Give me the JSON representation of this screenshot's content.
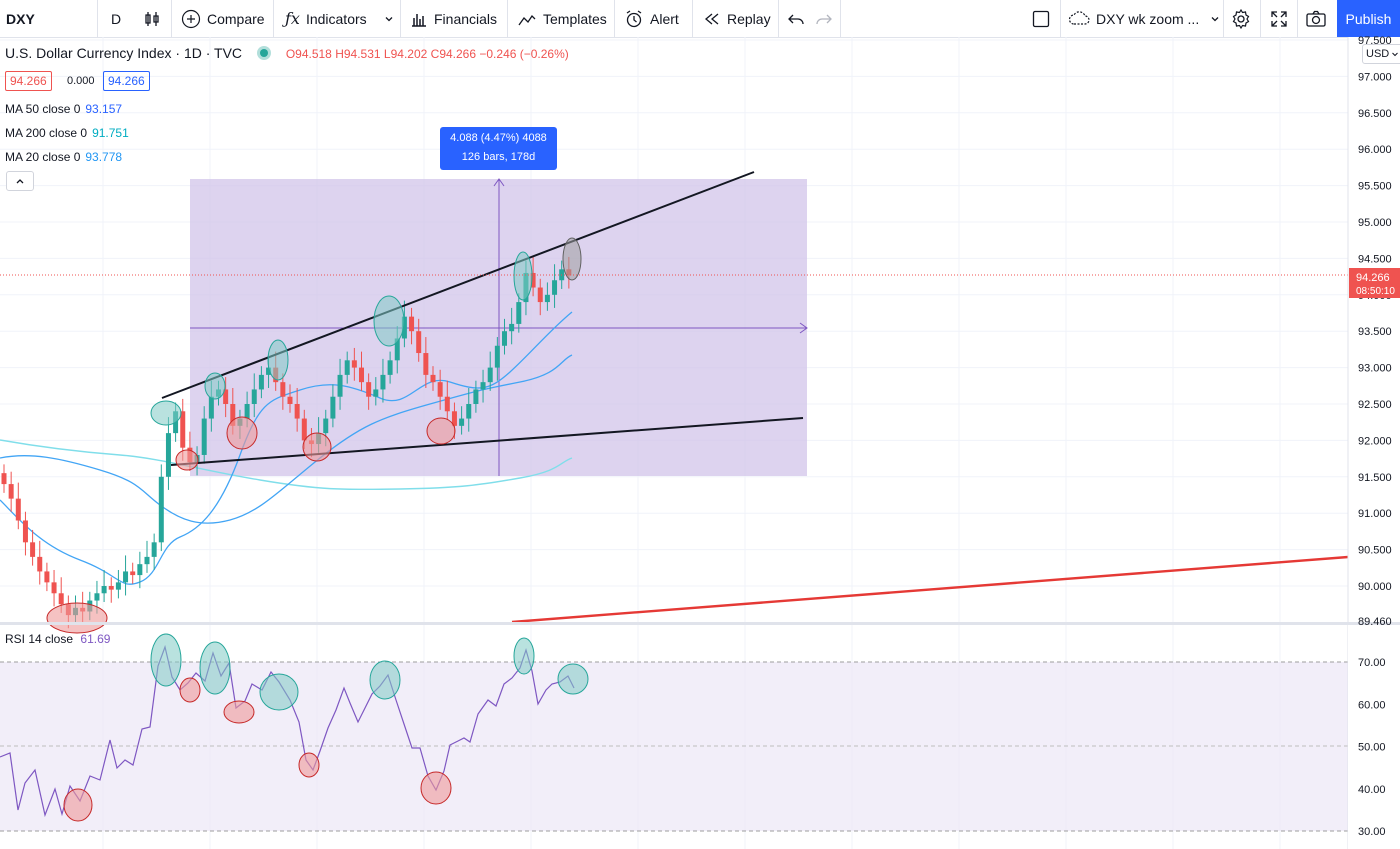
{
  "toolbar": {
    "symbol": "DXY",
    "interval": "D",
    "compare_label": "Compare",
    "indicators_label": "Indicators",
    "financials_label": "Financials",
    "templates_label": "Templates",
    "alert_label": "Alert",
    "replay_label": "Replay",
    "layout_name": "DXY wk zoom ...",
    "publish_label": "Publish"
  },
  "legend": {
    "title": "U.S. Dollar Currency Index · 1D · TVC",
    "open": "O94.518",
    "high": "H94.531",
    "low": "L94.202",
    "close": "C94.266",
    "change": "−0.246 (−0.26%)",
    "bid": "94.266",
    "spread": "0.000",
    "ask": "94.266"
  },
  "indicators": {
    "ma50_label": "MA 50 close 0",
    "ma50_value": "93.157",
    "ma200_label": "MA 200 close 0",
    "ma200_value": "91.751",
    "ma20_label": "MA 20 close 0",
    "ma20_value": "93.778",
    "rsi_label": "RSI 14 close",
    "rsi_value": "61.69"
  },
  "measure": {
    "line1": "4.088 (4.47%) 4088",
    "line2": "126 bars, 178d"
  },
  "price_axis": {
    "currency": "USD",
    "ticks": [
      "97.500",
      "97.000",
      "96.500",
      "96.000",
      "95.500",
      "95.000",
      "94.500",
      "94.000",
      "93.500",
      "93.000",
      "92.500",
      "92.000",
      "91.500",
      "91.000",
      "90.500",
      "90.000",
      "89.460"
    ],
    "last_price": "94.266",
    "countdown": "08:50:10"
  },
  "rsi_axis": {
    "ticks": [
      "70.00",
      "60.00",
      "50.00",
      "40.00",
      "30.00"
    ]
  },
  "colors": {
    "accent": "#2962ff",
    "up": "#26a69a",
    "down": "#ef5350",
    "ma": "#42a5f5",
    "rsi": "#7e57c2",
    "range_fill": "#d1c4e9"
  },
  "chart_data": {
    "type": "candlestick",
    "ylim": [
      89.46,
      97.6
    ],
    "ohlc_closes": [
      91.4,
      91.2,
      90.9,
      90.6,
      90.4,
      90.2,
      90.05,
      89.9,
      89.75,
      89.6,
      89.7,
      89.65,
      89.8,
      89.9,
      90.0,
      89.95,
      90.05,
      90.2,
      90.15,
      90.3,
      90.4,
      90.6,
      91.5,
      92.1,
      92.4,
      91.9,
      91.7,
      91.8,
      92.3,
      92.6,
      92.7,
      92.5,
      92.2,
      92.3,
      92.5,
      92.7,
      92.9,
      93.0,
      92.8,
      92.6,
      92.5,
      92.3,
      92.0,
      91.95,
      92.1,
      92.3,
      92.6,
      92.9,
      93.1,
      93.0,
      92.8,
      92.6,
      92.7,
      92.9,
      93.1,
      93.4,
      93.7,
      93.5,
      93.2,
      92.9,
      92.8,
      92.6,
      92.4,
      92.2,
      92.3,
      92.5,
      92.7,
      92.8,
      93.0,
      93.3,
      93.5,
      93.6,
      93.9,
      94.3,
      94.1,
      93.9,
      94.0,
      94.2,
      94.35,
      94.266
    ],
    "rsi_values": [
      43,
      38,
      41,
      36,
      35,
      40,
      37,
      42,
      44,
      48,
      52,
      55,
      50,
      58,
      65,
      72,
      68,
      66,
      64,
      69,
      71,
      63,
      60,
      58,
      62,
      64,
      61,
      55,
      48,
      44,
      50,
      55,
      60,
      58,
      63,
      66,
      69,
      64,
      58,
      54,
      49,
      42,
      40,
      46,
      50,
      52,
      55,
      58,
      62,
      66,
      70,
      67,
      63,
      61,
      64,
      66,
      68,
      65,
      63
    ]
  }
}
